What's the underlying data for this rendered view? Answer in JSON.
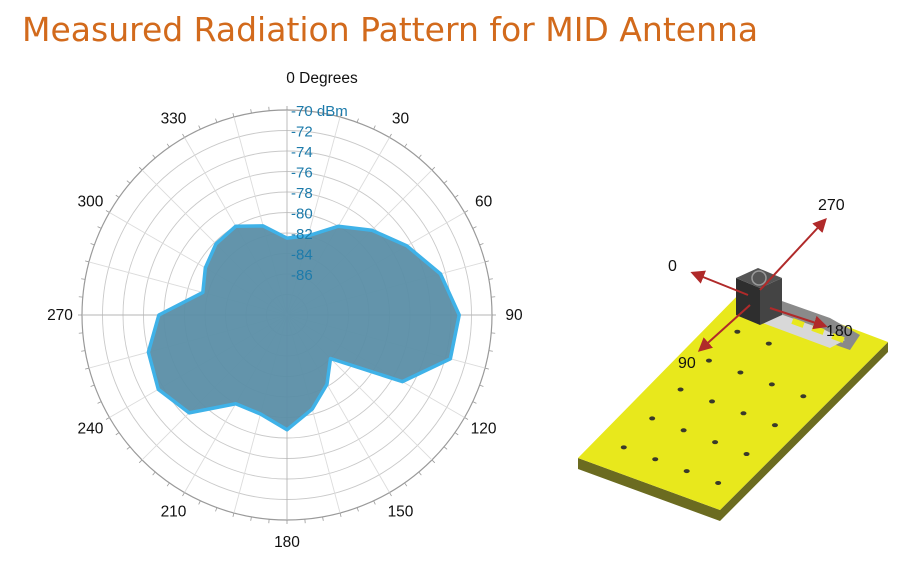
{
  "title": "Measured Radiation Pattern for MID Antenna",
  "chart_data": {
    "type": "polar-area",
    "title": "Measured Radiation Pattern for MID Antenna",
    "angle_label": "0 Degrees",
    "angle_ticks": [
      {
        "angle": 0,
        "label": "0 Degrees"
      },
      {
        "angle": 30,
        "label": "30"
      },
      {
        "angle": 60,
        "label": "60"
      },
      {
        "angle": 90,
        "label": "90"
      },
      {
        "angle": 120,
        "label": "120"
      },
      {
        "angle": 150,
        "label": "150"
      },
      {
        "angle": 180,
        "label": "180"
      },
      {
        "angle": 210,
        "label": "210"
      },
      {
        "angle": 240,
        "label": "240"
      },
      {
        "angle": 270,
        "label": "270"
      },
      {
        "angle": 300,
        "label": "300"
      },
      {
        "angle": 330,
        "label": "330"
      }
    ],
    "radial_unit": "dBm",
    "radial_ticks": [
      {
        "value": -70,
        "label": "-70 dBm"
      },
      {
        "value": -72,
        "label": "-72"
      },
      {
        "value": -74,
        "label": "-74"
      },
      {
        "value": -76,
        "label": "-76"
      },
      {
        "value": -78,
        "label": "-78"
      },
      {
        "value": -80,
        "label": "-80"
      },
      {
        "value": -82,
        "label": "-82"
      },
      {
        "value": -84,
        "label": "-84"
      },
      {
        "value": -86,
        "label": "-86"
      }
    ],
    "radial_range": [
      -90,
      -70
    ],
    "grid": true,
    "series": [
      {
        "fill": "#5b8ea6",
        "stroke": "#3fb2e8",
        "points": [
          {
            "angle": 0,
            "value": -82.5
          },
          {
            "angle": 15,
            "value": -82.0
          },
          {
            "angle": 30,
            "value": -80.0
          },
          {
            "angle": 45,
            "value": -78.3
          },
          {
            "angle": 60,
            "value": -76.5
          },
          {
            "angle": 75,
            "value": -74.5
          },
          {
            "angle": 90,
            "value": -73.2
          },
          {
            "angle": 105,
            "value": -73.5
          },
          {
            "angle": 120,
            "value": -77.0
          },
          {
            "angle": 135,
            "value": -84.0
          },
          {
            "angle": 150,
            "value": -82.2
          },
          {
            "angle": 165,
            "value": -80.5
          },
          {
            "angle": 180,
            "value": -78.8
          },
          {
            "angle": 195,
            "value": -80.0
          },
          {
            "angle": 210,
            "value": -80.0
          },
          {
            "angle": 225,
            "value": -76.5
          },
          {
            "angle": 240,
            "value": -75.5
          },
          {
            "angle": 255,
            "value": -76.0
          },
          {
            "angle": 270,
            "value": -77.5
          },
          {
            "angle": 285,
            "value": -81.5
          },
          {
            "angle": 300,
            "value": -80.8
          },
          {
            "angle": 315,
            "value": -80.2
          },
          {
            "angle": 330,
            "value": -80.0
          },
          {
            "angle": 345,
            "value": -81.0
          }
        ]
      }
    ]
  },
  "antenna_diagram": {
    "direction_labels": {
      "d0": "0",
      "d90": "90",
      "d180": "180",
      "d270": "270"
    },
    "colors": {
      "board": "#e8e81c",
      "board_side": "#6b6b20",
      "arrow": "#b02a2a",
      "metal": "#7a7a7a",
      "connector": "#3a3a3a"
    }
  }
}
